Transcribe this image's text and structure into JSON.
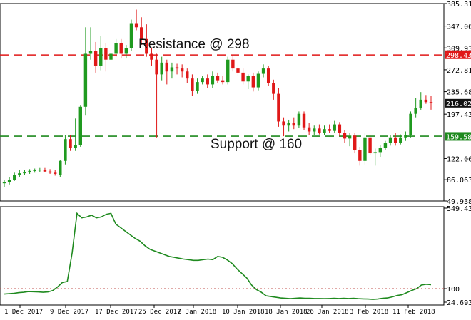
{
  "annotations": {
    "resistance": "Resistance @ 298",
    "support": "Support @ 160"
  },
  "colors": {
    "bull": "#1f9a1f",
    "bear": "#e01818",
    "resistance_line": "#e01818",
    "support_line": "#1f8a1f",
    "indicator_line": "#1f8a1f",
    "indicator_ref_line": "#c0504d",
    "current_tag_bg": "#111111",
    "current_tag_text": "#ffffff",
    "resistance_tag_bg": "#e01818",
    "support_tag_bg": "#1f8a1f"
  },
  "chart_data": [
    {
      "type": "candlestick",
      "title": "",
      "xlabel": "",
      "ylabel": "",
      "ylim": [
        49.938,
        385.313
      ],
      "yticks": [
        "385.313",
        "347.063",
        "309.938",
        "272.813",
        "235.688",
        "197.438",
        "122.063",
        "86.0630",
        "49.9380"
      ],
      "price_tags": {
        "resistance": "298.439",
        "current": "216.027",
        "support": "159.583"
      },
      "resistance": 298,
      "support": 160,
      "candles": [
        {
          "o": 80,
          "h": 86,
          "l": 74,
          "c": 82
        },
        {
          "o": 82,
          "h": 90,
          "l": 78,
          "c": 86
        },
        {
          "o": 86,
          "h": 98,
          "l": 84,
          "c": 94
        },
        {
          "o": 94,
          "h": 102,
          "l": 90,
          "c": 97
        },
        {
          "o": 97,
          "h": 103,
          "l": 94,
          "c": 99
        },
        {
          "o": 99,
          "h": 104,
          "l": 96,
          "c": 101
        },
        {
          "o": 101,
          "h": 105,
          "l": 98,
          "c": 102
        },
        {
          "o": 102,
          "h": 106,
          "l": 99,
          "c": 103
        },
        {
          "o": 103,
          "h": 106,
          "l": 99,
          "c": 100
        },
        {
          "o": 100,
          "h": 104,
          "l": 96,
          "c": 98
        },
        {
          "o": 98,
          "h": 103,
          "l": 93,
          "c": 96
        },
        {
          "o": 94,
          "h": 120,
          "l": 90,
          "c": 118
        },
        {
          "o": 118,
          "h": 162,
          "l": 112,
          "c": 155
        },
        {
          "o": 155,
          "h": 162,
          "l": 135,
          "c": 140
        },
        {
          "o": 140,
          "h": 190,
          "l": 135,
          "c": 145
        },
        {
          "o": 145,
          "h": 212,
          "l": 142,
          "c": 210
        },
        {
          "o": 210,
          "h": 345,
          "l": 195,
          "c": 300
        },
        {
          "o": 300,
          "h": 345,
          "l": 290,
          "c": 305
        },
        {
          "o": 305,
          "h": 320,
          "l": 268,
          "c": 280
        },
        {
          "o": 280,
          "h": 330,
          "l": 272,
          "c": 310
        },
        {
          "o": 310,
          "h": 318,
          "l": 270,
          "c": 290
        },
        {
          "o": 290,
          "h": 312,
          "l": 280,
          "c": 300
        },
        {
          "o": 300,
          "h": 325,
          "l": 295,
          "c": 318
        },
        {
          "o": 318,
          "h": 325,
          "l": 292,
          "c": 300
        },
        {
          "o": 300,
          "h": 315,
          "l": 292,
          "c": 310
        },
        {
          "o": 310,
          "h": 358,
          "l": 305,
          "c": 352
        },
        {
          "o": 352,
          "h": 375,
          "l": 340,
          "c": 345
        },
        {
          "o": 345,
          "h": 362,
          "l": 315,
          "c": 325
        },
        {
          "o": 325,
          "h": 350,
          "l": 295,
          "c": 300
        },
        {
          "o": 300,
          "h": 310,
          "l": 280,
          "c": 290
        },
        {
          "o": 290,
          "h": 300,
          "l": 158,
          "c": 265
        },
        {
          "o": 265,
          "h": 295,
          "l": 255,
          "c": 285
        },
        {
          "o": 285,
          "h": 290,
          "l": 248,
          "c": 270
        },
        {
          "o": 270,
          "h": 285,
          "l": 258,
          "c": 277
        },
        {
          "o": 277,
          "h": 283,
          "l": 265,
          "c": 275
        },
        {
          "o": 275,
          "h": 282,
          "l": 260,
          "c": 270
        },
        {
          "o": 270,
          "h": 275,
          "l": 250,
          "c": 258
        },
        {
          "o": 258,
          "h": 265,
          "l": 228,
          "c": 237
        },
        {
          "o": 237,
          "h": 258,
          "l": 232,
          "c": 252
        },
        {
          "o": 252,
          "h": 262,
          "l": 248,
          "c": 258
        },
        {
          "o": 258,
          "h": 265,
          "l": 242,
          "c": 248
        },
        {
          "o": 248,
          "h": 270,
          "l": 242,
          "c": 262
        },
        {
          "o": 262,
          "h": 268,
          "l": 250,
          "c": 255
        },
        {
          "o": 255,
          "h": 262,
          "l": 248,
          "c": 252
        },
        {
          "o": 252,
          "h": 295,
          "l": 248,
          "c": 290
        },
        {
          "o": 290,
          "h": 298,
          "l": 270,
          "c": 275
        },
        {
          "o": 275,
          "h": 282,
          "l": 262,
          "c": 268
        },
        {
          "o": 268,
          "h": 275,
          "l": 248,
          "c": 253
        },
        {
          "o": 253,
          "h": 265,
          "l": 240,
          "c": 262
        },
        {
          "o": 262,
          "h": 268,
          "l": 236,
          "c": 243
        },
        {
          "o": 243,
          "h": 270,
          "l": 238,
          "c": 266
        },
        {
          "o": 266,
          "h": 282,
          "l": 260,
          "c": 275
        },
        {
          "o": 275,
          "h": 280,
          "l": 245,
          "c": 250
        },
        {
          "o": 250,
          "h": 256,
          "l": 222,
          "c": 232
        },
        {
          "o": 232,
          "h": 242,
          "l": 176,
          "c": 185
        },
        {
          "o": 185,
          "h": 192,
          "l": 160,
          "c": 178
        },
        {
          "o": 178,
          "h": 188,
          "l": 168,
          "c": 183
        },
        {
          "o": 183,
          "h": 192,
          "l": 172,
          "c": 178
        },
        {
          "o": 178,
          "h": 202,
          "l": 174,
          "c": 198
        },
        {
          "o": 198,
          "h": 202,
          "l": 170,
          "c": 175
        },
        {
          "o": 175,
          "h": 182,
          "l": 162,
          "c": 168
        },
        {
          "o": 168,
          "h": 178,
          "l": 162,
          "c": 173
        },
        {
          "o": 173,
          "h": 180,
          "l": 163,
          "c": 166
        },
        {
          "o": 166,
          "h": 178,
          "l": 162,
          "c": 172
        },
        {
          "o": 172,
          "h": 180,
          "l": 165,
          "c": 169
        },
        {
          "o": 169,
          "h": 186,
          "l": 165,
          "c": 180
        },
        {
          "o": 180,
          "h": 184,
          "l": 160,
          "c": 165
        },
        {
          "o": 165,
          "h": 170,
          "l": 148,
          "c": 156
        },
        {
          "o": 156,
          "h": 166,
          "l": 143,
          "c": 161
        },
        {
          "o": 161,
          "h": 166,
          "l": 131,
          "c": 136
        },
        {
          "o": 136,
          "h": 142,
          "l": 110,
          "c": 118
        },
        {
          "o": 118,
          "h": 165,
          "l": 112,
          "c": 158
        },
        {
          "o": 158,
          "h": 162,
          "l": 128,
          "c": 131
        },
        {
          "o": 131,
          "h": 139,
          "l": 110,
          "c": 133
        },
        {
          "o": 133,
          "h": 145,
          "l": 125,
          "c": 140
        },
        {
          "o": 140,
          "h": 152,
          "l": 136,
          "c": 148
        },
        {
          "o": 148,
          "h": 162,
          "l": 144,
          "c": 158
        },
        {
          "o": 158,
          "h": 166,
          "l": 144,
          "c": 149
        },
        {
          "o": 149,
          "h": 163,
          "l": 146,
          "c": 158
        },
        {
          "o": 158,
          "h": 168,
          "l": 152,
          "c": 162
        },
        {
          "o": 162,
          "h": 202,
          "l": 158,
          "c": 198
        },
        {
          "o": 198,
          "h": 225,
          "l": 192,
          "c": 208
        },
        {
          "o": 208,
          "h": 235,
          "l": 205,
          "c": 222
        },
        {
          "o": 222,
          "h": 230,
          "l": 215,
          "c": 218
        },
        {
          "o": 218,
          "h": 228,
          "l": 205,
          "c": 216
        }
      ],
      "xticks": [
        "1 Dec 2017",
        "9 Dec 2017",
        "17 Dec 2017",
        "25 Dec 2017",
        "2 Jan 2018",
        "10 Jan 2018",
        "18 Jan 2018",
        "26 Jan 2018",
        "3 Feb 2018",
        "11 Feb 2018"
      ]
    },
    {
      "type": "line",
      "title": "",
      "ylim": [
        24.6939,
        549.4308
      ],
      "yticks": [
        "549.4308",
        "100",
        "24.6939"
      ],
      "reference_line": 100,
      "values": [
        70,
        72,
        74,
        78,
        80,
        84,
        83,
        82,
        80,
        82,
        90,
        110,
        135,
        140,
        300,
        520,
        495,
        500,
        510,
        495,
        500,
        515,
        520,
        460,
        440,
        420,
        400,
        380,
        365,
        340,
        320,
        310,
        300,
        290,
        280,
        275,
        270,
        265,
        262,
        258,
        258,
        262,
        265,
        262,
        280,
        275,
        260,
        240,
        210,
        185,
        160,
        120,
        95,
        80,
        60,
        56,
        52,
        48,
        46,
        44,
        46,
        48,
        46,
        46,
        45,
        45,
        44,
        45,
        46,
        45,
        46,
        45,
        46,
        44,
        43,
        42,
        40,
        42,
        46,
        48,
        54,
        62,
        66,
        78,
        90,
        100,
        120,
        125,
        122
      ]
    }
  ]
}
